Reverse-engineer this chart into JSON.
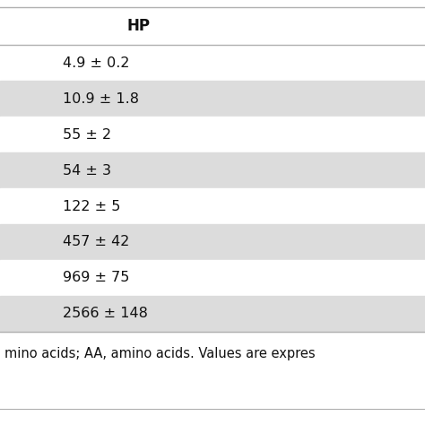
{
  "header": "HP",
  "rows": [
    "4.9 ± 0.2",
    "10.9 ± 1.8",
    "55 ± 2",
    "54 ± 3",
    "122 ± 5",
    "457 ± 42",
    "969 ± 75",
    "2566 ± 148"
  ],
  "row_colors": [
    "#ffffff",
    "#dcdcdc",
    "#ffffff",
    "#dcdcdc",
    "#ffffff",
    "#dcdcdc",
    "#ffffff",
    "#dcdcdc"
  ],
  "footer_text": "mino acids; AA, amino acids. Values are expres",
  "bg_color": "#ffffff",
  "header_fontsize": 12,
  "cell_fontsize": 11.5,
  "footer_fontsize": 10.5,
  "line_color": "#b0b0b0",
  "text_color": "#111111",
  "fig_width": 4.74,
  "fig_height": 4.74,
  "dpi": 100
}
